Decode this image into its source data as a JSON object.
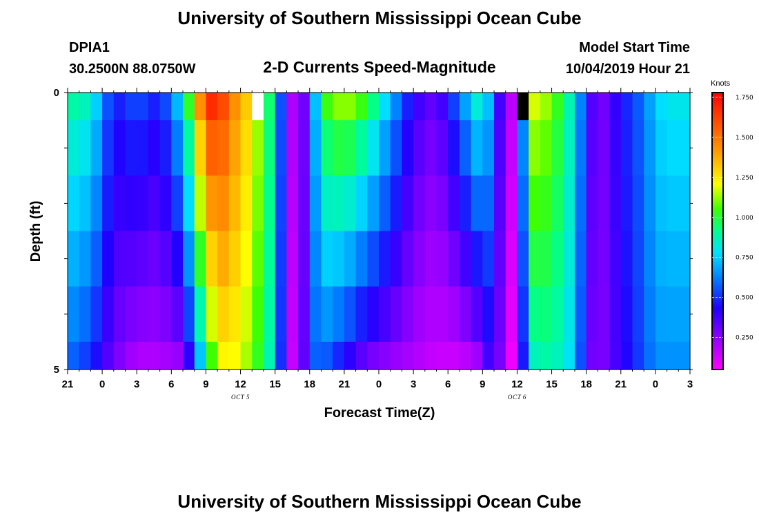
{
  "header": {
    "title": "University of Southern Mississippi Ocean Cube",
    "station": "DPIA1",
    "location": "30.2500N 88.0750W",
    "plot_title": "2-D Currents Speed-Magnitude",
    "model_label": "Model Start Time",
    "model_time": "10/04/2019 Hour 21"
  },
  "footer": {
    "title": "University of Southern Mississippi Ocean Cube"
  },
  "chart_data": {
    "type": "heatmap",
    "title": "2-D Currents Speed-Magnitude",
    "xlabel": "Forecast Time(Z)",
    "ylabel": "Depth (ft)",
    "x_tick_labels": [
      "21",
      "0",
      "3",
      "6",
      "9",
      "12",
      "15",
      "18",
      "21",
      "0",
      "3",
      "6",
      "9",
      "12",
      "15",
      "18",
      "21",
      "0",
      "3"
    ],
    "x_hours": [
      0,
      3,
      6,
      9,
      12,
      15,
      18,
      21,
      24,
      27,
      30,
      33,
      36,
      39,
      42,
      45,
      48,
      51,
      54
    ],
    "date_labels": [
      {
        "label": "OCT 5",
        "hour": 15
      },
      {
        "label": "OCT 6",
        "hour": 39
      }
    ],
    "y_tick_labels": [
      "0",
      "5"
    ],
    "ylim": [
      0,
      5
    ],
    "depth_edges": [
      0,
      0.5,
      1.5,
      2.5,
      3.5,
      4.5,
      5
    ],
    "colorbar": {
      "label": "Knots",
      "min": 0.05,
      "max": 1.78,
      "ticks": [
        {
          "value": 0.25,
          "label": "0.250"
        },
        {
          "value": 0.5,
          "label": "0.500"
        },
        {
          "value": 0.75,
          "label": "0.750"
        },
        {
          "value": 1.0,
          "label": "1.000"
        },
        {
          "value": 1.25,
          "label": "1.250"
        },
        {
          "value": 1.5,
          "label": "1.500"
        },
        {
          "value": 1.75,
          "label": "1.750"
        }
      ]
    },
    "x_anchor_hours": [
      0,
      2,
      4,
      6,
      8,
      10,
      12,
      13,
      14,
      16,
      18,
      19,
      20,
      21,
      22,
      24,
      26,
      28,
      30,
      32,
      34,
      36,
      37,
      38,
      39,
      40,
      42,
      44,
      45,
      46,
      48,
      50,
      51,
      52,
      54
    ],
    "profiles": {
      "surface": [
        0.9,
        0.85,
        0.45,
        0.55,
        0.45,
        0.8,
        1.65,
        1.7,
        1.5,
        1.25,
        0.85,
        0.25,
        0.15,
        0.45,
        1.0,
        1.15,
        1.0,
        0.7,
        0.4,
        0.3,
        0.6,
        0.9,
        0.55,
        0.2,
        0.15,
        1.2,
        1.1,
        0.8,
        0.45,
        0.25,
        0.45,
        0.6,
        0.75,
        0.8,
        0.8
      ],
      "bottom": [
        0.6,
        0.5,
        0.3,
        0.2,
        0.2,
        0.25,
        0.9,
        1.2,
        1.25,
        1.1,
        0.8,
        0.2,
        0.1,
        0.55,
        0.6,
        0.45,
        0.3,
        0.25,
        0.2,
        0.15,
        0.15,
        0.25,
        0.5,
        0.08,
        0.08,
        0.85,
        0.9,
        0.75,
        0.35,
        0.25,
        0.4,
        0.55,
        0.65,
        0.65,
        0.65
      ]
    },
    "missing_cells": [
      {
        "hour": 16,
        "layer": 0,
        "color": "#ffffff"
      },
      {
        "hour": 39,
        "layer": 0,
        "color": "#000000"
      }
    ]
  }
}
